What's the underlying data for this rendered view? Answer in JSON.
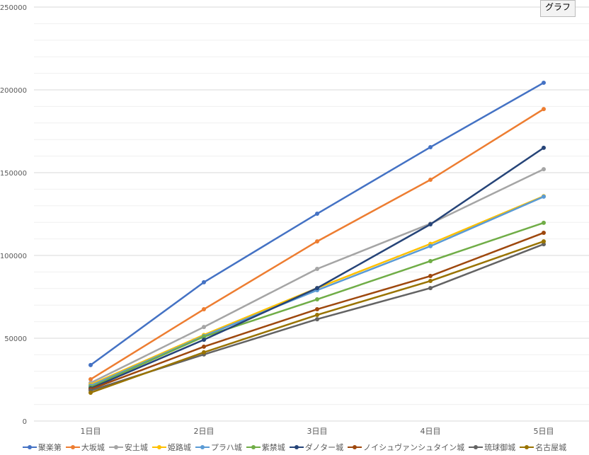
{
  "button_label": "グラフ",
  "chart_data": {
    "type": "line",
    "categories": [
      "1日目",
      "2日目",
      "3日目",
      "4日目",
      "5日目"
    ],
    "ylim": [
      0,
      250000
    ],
    "yticks": [
      0,
      50000,
      100000,
      150000,
      200000,
      250000
    ],
    "grid": true,
    "legend": "bottom",
    "series": [
      {
        "name": "聚楽第",
        "color": "#4472C4",
        "values": [
          33800,
          83800,
          125200,
          165400,
          204300
        ]
      },
      {
        "name": "大坂城",
        "color": "#ED7D31",
        "values": [
          25200,
          67500,
          108500,
          145700,
          188400
        ]
      },
      {
        "name": "安土城",
        "color": "#A5A5A5",
        "values": [
          23000,
          56800,
          91900,
          119200,
          152100
        ]
      },
      {
        "name": "姫路城",
        "color": "#FFC000",
        "values": [
          22000,
          52000,
          80300,
          107000,
          135800
        ]
      },
      {
        "name": "プラハ城",
        "color": "#5B9BD5",
        "values": [
          21300,
          51300,
          79000,
          105600,
          135500
        ]
      },
      {
        "name": "紫禁城",
        "color": "#70AD47",
        "values": [
          20500,
          50900,
          73500,
          96600,
          119700
        ]
      },
      {
        "name": "ダノター城",
        "color": "#264478",
        "values": [
          19700,
          49100,
          80300,
          118800,
          165000
        ]
      },
      {
        "name": "ノイシュヴァンシュタイン城",
        "color": "#9E480E",
        "values": [
          19200,
          44900,
          67500,
          87600,
          113700
        ]
      },
      {
        "name": "琉球御城",
        "color": "#636363",
        "values": [
          18400,
          40200,
          61500,
          80300,
          106800
        ]
      },
      {
        "name": "名古屋城",
        "color": "#997300",
        "values": [
          17100,
          41500,
          64100,
          84600,
          108500
        ]
      }
    ]
  }
}
